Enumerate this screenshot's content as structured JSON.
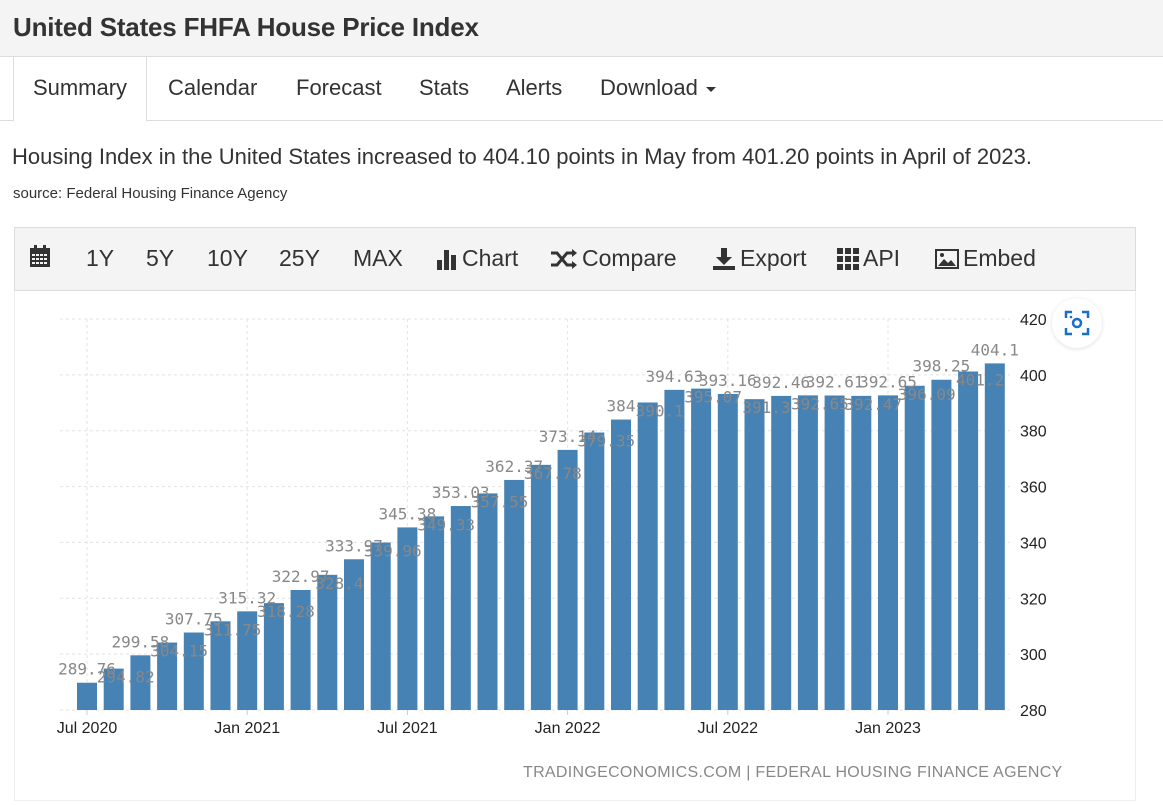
{
  "header": {
    "title": "United States FHFA House Price Index"
  },
  "tabs": [
    {
      "label": "Summary",
      "active": true
    },
    {
      "label": "Calendar"
    },
    {
      "label": "Forecast"
    },
    {
      "label": "Stats"
    },
    {
      "label": "Alerts"
    },
    {
      "label": "Download",
      "dropdown": true
    }
  ],
  "summary": {
    "text": "Housing Index in the United States increased to 404.10 points in May from 401.20 points in April of 2023.",
    "source": "source: Federal Housing Finance Agency"
  },
  "toolbar": {
    "calendar_icon": "calendar-icon",
    "ranges": [
      "1Y",
      "5Y",
      "10Y",
      "25Y",
      "MAX"
    ],
    "chart": "Chart",
    "compare": "Compare",
    "export": "Export",
    "api": "API",
    "embed": "Embed"
  },
  "credit": "TRADINGECONOMICS.COM | FEDERAL HOUSING FINANCE AGENCY",
  "chart_data": {
    "type": "bar",
    "title": "",
    "bar_color": "#4682b4",
    "categories": [
      "Jul 2020",
      "Aug 2020",
      "Sep 2020",
      "Oct 2020",
      "Nov 2020",
      "Dec 2020",
      "Jan 2021",
      "Feb 2021",
      "Mar 2021",
      "Apr 2021",
      "May 2021",
      "Jun 2021",
      "Jul 2021",
      "Aug 2021",
      "Sep 2021",
      "Oct 2021",
      "Nov 2021",
      "Dec 2021",
      "Jan 2022",
      "Feb 2022",
      "Mar 2022",
      "Apr 2022",
      "May 2022",
      "Jun 2022",
      "Jul 2022",
      "Aug 2022",
      "Sep 2022",
      "Oct 2022",
      "Nov 2022",
      "Dec 2022",
      "Jan 2023",
      "Feb 2023",
      "Mar 2023",
      "Apr 2023",
      "May 2023"
    ],
    "values": [
      289.76,
      294.82,
      299.58,
      304.15,
      307.75,
      311.75,
      315.32,
      318.28,
      322.97,
      328.4,
      333.97,
      339.96,
      345.38,
      349.33,
      353.03,
      357.55,
      362.37,
      367.78,
      373.14,
      379.35,
      384,
      390.1,
      394.63,
      395.07,
      393.16,
      391.3,
      392.46,
      392.65,
      392.61,
      392.47,
      392.65,
      396.09,
      398.25,
      401.2,
      404.1
    ],
    "x_tick_labels": [
      "Jul 2020",
      "Jan 2021",
      "Jul 2021",
      "Jan 2022",
      "Jul 2022",
      "Jan 2023"
    ],
    "y_ticks": [
      280,
      300,
      320,
      340,
      360,
      380,
      400,
      420
    ],
    "ylim": [
      280,
      420
    ],
    "y_axis_side": "right",
    "grid": true,
    "data_labels": true
  }
}
